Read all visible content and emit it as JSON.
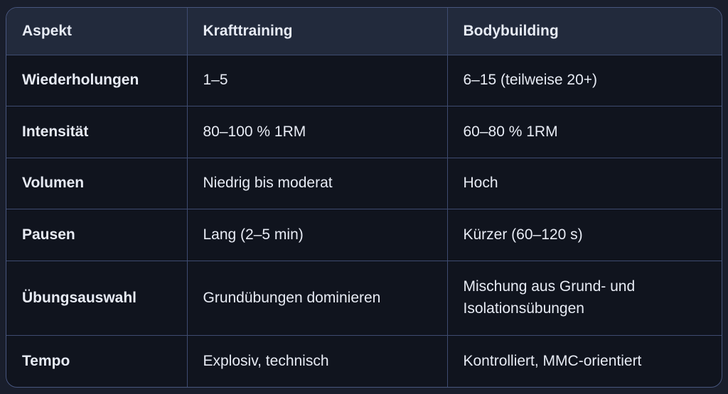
{
  "colors": {
    "page_background": "#191e2c",
    "card_border": "#48567e",
    "grid_border": "#3e4b70",
    "header_background": "#222a3c",
    "cell_background": "#10141e",
    "text": "#e7ebf4"
  },
  "table": {
    "columns": [
      "Aspekt",
      "Krafttraining",
      "Bodybuilding"
    ],
    "rows": [
      [
        "Wiederholungen",
        "1–5",
        "6–15 (teilweise 20+)"
      ],
      [
        "Intensität",
        "80–100 % 1RM",
        "60–80 % 1RM"
      ],
      [
        "Volumen",
        "Niedrig bis moderat",
        "Hoch"
      ],
      [
        "Pausen",
        "Lang (2–5 min)",
        "Kürzer (60–120 s)"
      ],
      [
        "Übungsauswahl",
        "Grundübungen dominieren",
        "Mischung aus Grund- und Isolationsübungen"
      ],
      [
        "Tempo",
        "Explosiv, technisch",
        "Kontrolliert, MMC-orientiert"
      ]
    ]
  }
}
